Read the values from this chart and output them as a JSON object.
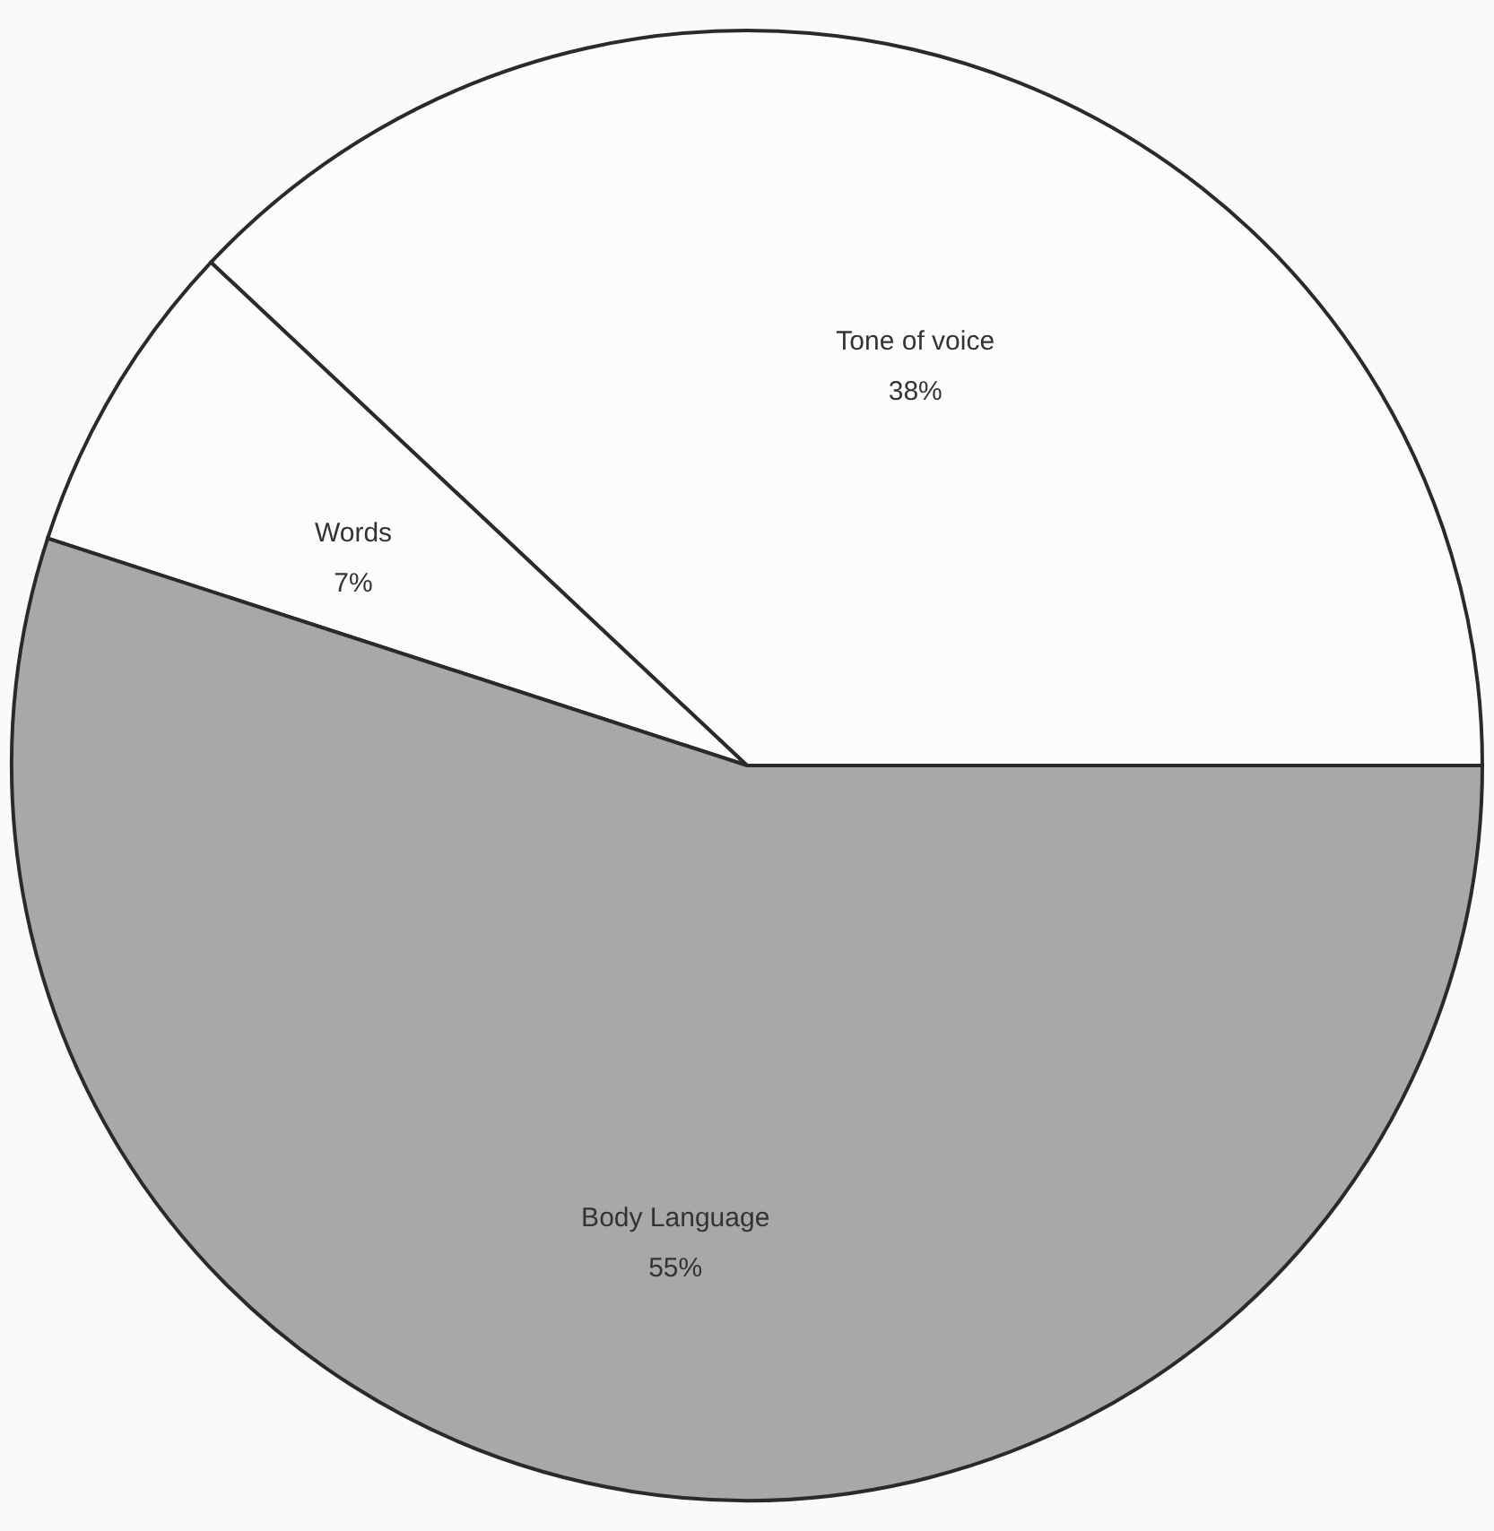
{
  "chart_data": {
    "type": "pie",
    "categories": [
      "Tone of voice",
      "Words",
      "Body Language"
    ],
    "values": [
      38,
      7,
      55
    ],
    "value_labels": [
      "38%",
      "7%",
      "55%"
    ],
    "colors": [
      "#fcfcfc",
      "#fcfcfc",
      "#a8a8a8"
    ]
  }
}
